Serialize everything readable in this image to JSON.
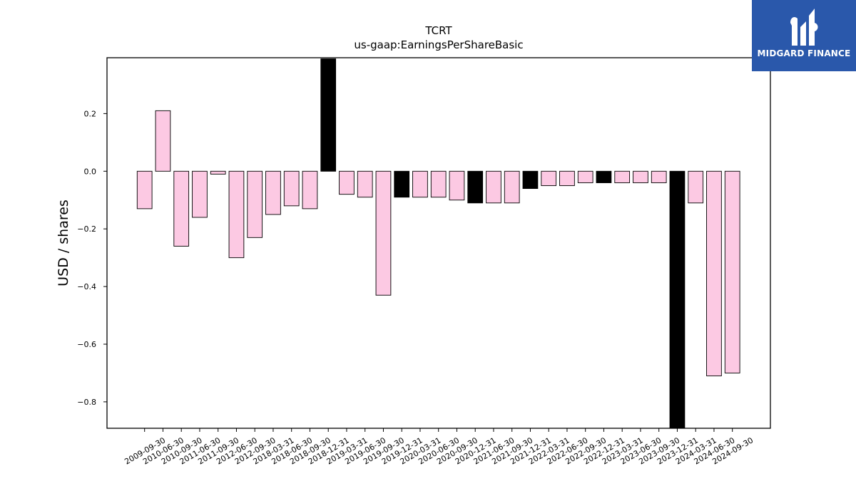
{
  "chart_data": {
    "type": "bar",
    "title": "TCRT",
    "subtitle": "us-gaap:EarningsPerShareBasic",
    "xlabel": "",
    "ylabel": "USD / shares",
    "ylim": [
      -0.89,
      0.39
    ],
    "yticks": [
      0.2,
      0.0,
      -0.2,
      -0.4,
      -0.6,
      -0.8
    ],
    "ytick_labels": [
      "0.2",
      "0.0",
      "−0.2",
      "−0.4",
      "−0.6",
      "−0.8"
    ],
    "grid": false,
    "categories": [
      "2009-09-30",
      "2010-06-30",
      "2010-09-30",
      "2011-06-30",
      "2011-09-30",
      "2012-06-30",
      "2012-09-30",
      "2018-03-31",
      "2018-06-30",
      "2018-09-30",
      "2018-12-31",
      "2019-03-31",
      "2019-06-30",
      "2019-09-30",
      "2019-12-31",
      "2020-03-31",
      "2020-06-30",
      "2020-09-30",
      "2020-12-31",
      "2021-06-30",
      "2021-09-30",
      "2021-12-31",
      "2022-03-31",
      "2022-06-30",
      "2022-09-30",
      "2022-12-31",
      "2023-03-31",
      "2023-06-30",
      "2023-09-30",
      "2023-12-31",
      "2024-03-31",
      "2024-06-30",
      "2024-09-30"
    ],
    "values": [
      -0.13,
      0.21,
      -0.26,
      -0.16,
      -0.01,
      -0.3,
      -0.23,
      -0.15,
      -0.12,
      -0.13,
      0.39,
      -0.08,
      -0.09,
      -0.43,
      -0.09,
      -0.09,
      -0.09,
      -0.1,
      -0.11,
      -0.11,
      -0.11,
      -0.06,
      -0.05,
      -0.05,
      -0.04,
      -0.04,
      -0.04,
      -0.04,
      -0.04,
      -0.89,
      -0.11,
      -0.71,
      -0.7
    ],
    "highlighted": [
      false,
      false,
      false,
      false,
      false,
      false,
      false,
      false,
      false,
      false,
      true,
      false,
      false,
      false,
      true,
      false,
      false,
      false,
      true,
      false,
      false,
      true,
      false,
      false,
      false,
      true,
      false,
      false,
      false,
      true,
      false,
      false,
      false
    ],
    "colors": {
      "bar": "#fcc9e3",
      "highlight": "#000000",
      "edge": "#000000"
    }
  },
  "logo": {
    "text": "MIDGARD FINANCE",
    "background": "#2a58ab",
    "color": "#ffffff"
  }
}
